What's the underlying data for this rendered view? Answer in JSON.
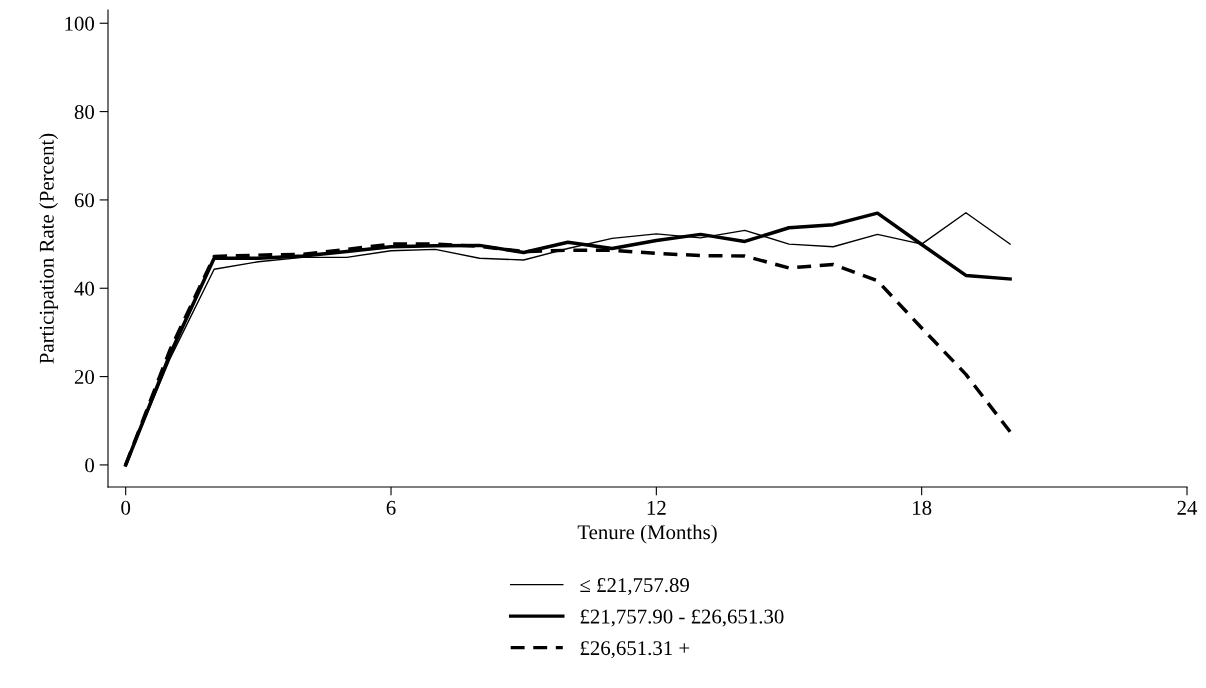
{
  "chart_data": {
    "type": "line",
    "xlabel": "Tenure (Months)",
    "ylabel": "Participation Rate (Percent)",
    "x": [
      0,
      1,
      2,
      3,
      4,
      5,
      6,
      7,
      8,
      9,
      10,
      11,
      12,
      13,
      14,
      15,
      16,
      17,
      18,
      19,
      20
    ],
    "xlim": [
      -0.4,
      24
    ],
    "xticks": [
      0,
      6,
      12,
      18,
      24
    ],
    "ylim": [
      -5,
      103
    ],
    "yticks": [
      0,
      20,
      40,
      60,
      80,
      100
    ],
    "grid": false,
    "legend": "bottom",
    "marker": "none",
    "series": [
      {
        "name": "≤ £21,757.89",
        "color": "#000000",
        "line_style": "solid",
        "values": [
          0,
          24,
          44.3,
          46,
          47,
          47,
          48.5,
          48.8,
          46.8,
          46.4,
          49,
          51.3,
          52.3,
          51.4,
          53.1,
          50,
          49.4,
          52.2,
          50,
          57.1,
          50
        ]
      },
      {
        "name": "£21,757.90 - £26,651.30",
        "color": "#000000",
        "line_style": "solid",
        "values": [
          0,
          25,
          46.8,
          46.8,
          47.3,
          48.3,
          49.4,
          49.6,
          49.7,
          48.1,
          50.4,
          49,
          50.8,
          52.2,
          50.6,
          53.7,
          54.4,
          57,
          49.9,
          42.9,
          42.1
        ]
      },
      {
        "name": "£26,651.31 +",
        "color": "#000000",
        "line_style": "dashed",
        "values": [
          0,
          26,
          47.2,
          47.5,
          47.7,
          48.8,
          50,
          50,
          49.5,
          48.3,
          48.6,
          48.6,
          47.9,
          47.4,
          47.3,
          44.6,
          45.4,
          41.7,
          31,
          20.5,
          7.5
        ]
      }
    ]
  }
}
